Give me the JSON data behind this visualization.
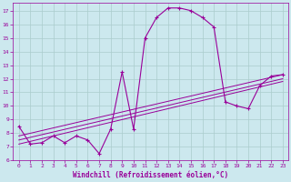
{
  "xlabel": "Windchill (Refroidissement éolien,°C)",
  "bg_color": "#cce8ee",
  "line_color": "#990099",
  "grid_color": "#aacccc",
  "xlim": [
    -0.5,
    23.5
  ],
  "ylim": [
    6,
    17.6
  ],
  "xticks": [
    0,
    1,
    2,
    3,
    4,
    5,
    6,
    7,
    8,
    9,
    10,
    11,
    12,
    13,
    14,
    15,
    16,
    17,
    18,
    19,
    20,
    21,
    22,
    23
  ],
  "yticks": [
    6,
    7,
    8,
    9,
    10,
    11,
    12,
    13,
    14,
    15,
    16,
    17
  ],
  "series": [
    {
      "x": [
        0,
        1,
        2,
        3,
        4,
        5,
        6,
        7,
        8,
        9,
        10,
        11,
        12,
        13,
        14,
        15,
        16,
        17,
        18,
        19,
        20,
        21,
        22,
        23
      ],
      "y": [
        8.5,
        7.2,
        7.3,
        7.8,
        7.3,
        7.8,
        7.5,
        6.5,
        8.3,
        12.5,
        8.3,
        15.0,
        16.5,
        17.2,
        17.2,
        17.0,
        16.5,
        15.8,
        10.3,
        10.0,
        9.8,
        11.5,
        12.2,
        12.3
      ]
    },
    {
      "x": [
        0,
        23
      ],
      "y": [
        7.2,
        11.8
      ]
    },
    {
      "x": [
        0,
        23
      ],
      "y": [
        7.5,
        12.0
      ]
    },
    {
      "x": [
        0,
        23
      ],
      "y": [
        7.8,
        12.3
      ]
    }
  ]
}
